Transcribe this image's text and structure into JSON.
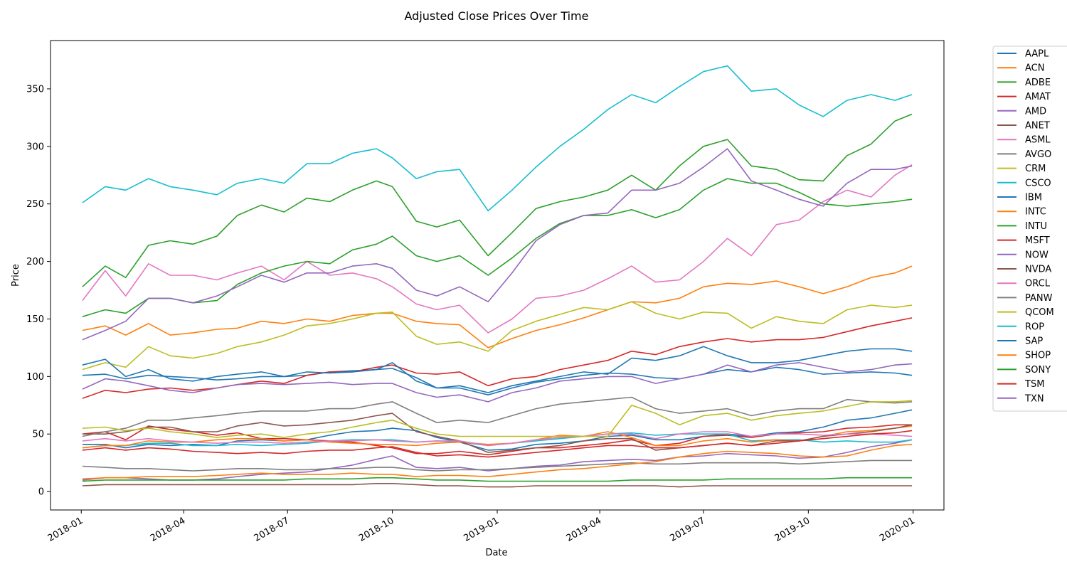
{
  "chart_data": {
    "type": "line",
    "title": "Adjusted Close Prices Over Time",
    "xlabel": "Date",
    "ylabel": "Price",
    "xlim": [
      "2017-12-05",
      "2020-01-28"
    ],
    "ylim": [
      -16,
      392
    ],
    "grid": false,
    "legend_placement": "outside right, top",
    "x_ticks": [
      "2018-01",
      "2018-04",
      "2018-07",
      "2018-10",
      "2019-01",
      "2019-04",
      "2019-07",
      "2019-10",
      "2020-01"
    ],
    "y_ticks": [
      0,
      50,
      100,
      150,
      200,
      250,
      300,
      350
    ],
    "x": [
      "2018-01-02",
      "2018-01-22",
      "2018-02-09",
      "2018-03-01",
      "2018-03-20",
      "2018-04-09",
      "2018-04-30",
      "2018-05-18",
      "2018-06-08",
      "2018-06-28",
      "2018-07-18",
      "2018-08-07",
      "2018-08-27",
      "2018-09-17",
      "2018-10-01",
      "2018-10-22",
      "2018-11-09",
      "2018-11-29",
      "2018-12-24",
      "2019-01-14",
      "2019-02-04",
      "2019-02-25",
      "2019-03-18",
      "2019-04-08",
      "2019-04-29",
      "2019-05-20",
      "2019-06-10",
      "2019-07-01",
      "2019-07-22",
      "2019-08-12",
      "2019-09-03",
      "2019-09-23",
      "2019-10-14",
      "2019-11-04",
      "2019-11-25",
      "2019-12-16",
      "2019-12-31"
    ],
    "series": [
      {
        "name": "AAPL",
        "color": "#1f77b4",
        "values": [
          41,
          41,
          38,
          41,
          40,
          41,
          40,
          44,
          45,
          44,
          45,
          49,
          52,
          53,
          55,
          53,
          47,
          43,
          36,
          37,
          41,
          42,
          44,
          48,
          49,
          45,
          45,
          48,
          50,
          48,
          51,
          52,
          56,
          62,
          64,
          68,
          71
        ]
      },
      {
        "name": "ACN",
        "color": "#ff7f0e",
        "values": [
          140,
          144,
          136,
          146,
          136,
          138,
          141,
          142,
          148,
          146,
          150,
          148,
          153,
          155,
          155,
          148,
          146,
          145,
          125,
          133,
          140,
          145,
          151,
          158,
          165,
          164,
          168,
          178,
          181,
          180,
          183,
          178,
          172,
          178,
          186,
          190,
          196
        ]
      },
      {
        "name": "ADBE",
        "color": "#2ca02c",
        "values": [
          178,
          196,
          186,
          214,
          218,
          215,
          222,
          240,
          249,
          243,
          255,
          252,
          262,
          270,
          265,
          235,
          230,
          236,
          205,
          225,
          246,
          252,
          256,
          262,
          275,
          262,
          283,
          300,
          306,
          283,
          280,
          271,
          270,
          292,
          302,
          322,
          328
        ]
      },
      {
        "name": "AMAT",
        "color": "#d62728",
        "values": [
          50,
          52,
          45,
          57,
          54,
          52,
          49,
          51,
          46,
          46,
          45,
          44,
          43,
          40,
          38,
          33,
          33,
          35,
          32,
          35,
          38,
          38,
          40,
          42,
          45,
          40,
          42,
          48,
          49,
          47,
          50,
          51,
          52,
          55,
          56,
          58,
          58
        ]
      },
      {
        "name": "AMD",
        "color": "#9467bd",
        "values": [
          10,
          12,
          12,
          11,
          10,
          10,
          11,
          13,
          15,
          16,
          17,
          20,
          23,
          28,
          31,
          21,
          20,
          21,
          18,
          20,
          22,
          23,
          26,
          27,
          28,
          27,
          30,
          31,
          33,
          32,
          31,
          29,
          30,
          34,
          39,
          42,
          45
        ]
      },
      {
        "name": "ANET",
        "color": "#8c564b",
        "values": [
          5,
          6,
          6,
          6,
          6,
          6,
          6,
          6,
          6,
          6,
          6,
          6,
          6,
          7,
          7,
          6,
          5,
          5,
          4,
          4,
          5,
          5,
          5,
          5,
          5,
          5,
          4,
          5,
          5,
          5,
          5,
          5,
          5,
          5,
          5,
          5,
          5
        ]
      },
      {
        "name": "ASML",
        "color": "#e377c2",
        "values": [
          166,
          192,
          170,
          198,
          188,
          188,
          184,
          190,
          196,
          184,
          200,
          188,
          190,
          185,
          178,
          163,
          158,
          162,
          138,
          150,
          168,
          170,
          175,
          185,
          196,
          182,
          184,
          200,
          220,
          205,
          232,
          236,
          252,
          262,
          256,
          275,
          284
        ]
      },
      {
        "name": "AVGO",
        "color": "#7f7f7f",
        "values": [
          22,
          21,
          20,
          20,
          19,
          18,
          19,
          20,
          20,
          19,
          19,
          20,
          20,
          21,
          21,
          19,
          18,
          19,
          19,
          20,
          21,
          22,
          23,
          24,
          25,
          24,
          24,
          25,
          25,
          25,
          25,
          24,
          25,
          26,
          27,
          27,
          27
        ]
      },
      {
        "name": "CRM",
        "color": "#bcbd22",
        "values": [
          106,
          112,
          108,
          126,
          118,
          116,
          120,
          126,
          130,
          136,
          144,
          146,
          150,
          155,
          156,
          135,
          128,
          130,
          122,
          140,
          148,
          154,
          160,
          158,
          165,
          155,
          150,
          156,
          155,
          142,
          152,
          148,
          146,
          158,
          162,
          160,
          162
        ]
      },
      {
        "name": "CSCO",
        "color": "#17becf",
        "values": [
          38,
          40,
          40,
          42,
          42,
          40,
          40,
          41,
          40,
          41,
          42,
          44,
          45,
          45,
          45,
          43,
          44,
          43,
          40,
          42,
          44,
          46,
          48,
          50,
          51,
          49,
          50,
          50,
          50,
          44,
          45,
          45,
          43,
          44,
          43,
          43,
          45
        ]
      },
      {
        "name": "IBM",
        "color": "#1f77b4",
        "values": [
          101,
          102,
          98,
          101,
          100,
          99,
          97,
          98,
          100,
          100,
          101,
          104,
          105,
          106,
          107,
          99,
          90,
          90,
          84,
          90,
          95,
          98,
          101,
          103,
          102,
          99,
          98,
          102,
          106,
          104,
          108,
          106,
          102,
          103,
          104,
          103,
          101
        ]
      },
      {
        "name": "INTC",
        "color": "#ff7f0e",
        "values": [
          38,
          40,
          40,
          44,
          43,
          43,
          45,
          46,
          46,
          44,
          45,
          43,
          42,
          41,
          41,
          40,
          42,
          43,
          41,
          42,
          45,
          49,
          48,
          52,
          47,
          40,
          40,
          44,
          46,
          43,
          45,
          44,
          48,
          52,
          53,
          55,
          57
        ]
      },
      {
        "name": "INTU",
        "color": "#2ca02c",
        "values": [
          152,
          158,
          155,
          168,
          168,
          164,
          166,
          180,
          190,
          196,
          200,
          198,
          210,
          215,
          222,
          205,
          200,
          205,
          188,
          203,
          220,
          233,
          240,
          240,
          245,
          238,
          245,
          262,
          272,
          268,
          268,
          260,
          250,
          248,
          250,
          252,
          254
        ]
      },
      {
        "name": "MSFT",
        "color": "#d62728",
        "values": [
          81,
          88,
          86,
          89,
          90,
          88,
          90,
          93,
          96,
          94,
          101,
          104,
          104,
          108,
          110,
          103,
          102,
          104,
          92,
          98,
          100,
          106,
          110,
          114,
          122,
          119,
          126,
          130,
          133,
          130,
          132,
          132,
          134,
          139,
          144,
          148,
          151
        ]
      },
      {
        "name": "NOW",
        "color": "#9467bd",
        "values": [
          132,
          140,
          148,
          168,
          168,
          164,
          170,
          178,
          188,
          182,
          190,
          190,
          196,
          198,
          194,
          175,
          170,
          178,
          165,
          190,
          218,
          232,
          240,
          242,
          262,
          262,
          268,
          282,
          298,
          270,
          262,
          254,
          248,
          268,
          280,
          280,
          283
        ]
      },
      {
        "name": "NVDA",
        "color": "#8c564b",
        "values": [
          50,
          50,
          52,
          56,
          56,
          52,
          52,
          57,
          60,
          57,
          58,
          60,
          62,
          66,
          68,
          52,
          48,
          44,
          34,
          36,
          38,
          40,
          44,
          46,
          46,
          36,
          38,
          40,
          42,
          40,
          44,
          44,
          48,
          50,
          52,
          55,
          58
        ]
      },
      {
        "name": "ORCL",
        "color": "#e377c2",
        "values": [
          44,
          46,
          44,
          46,
          44,
          43,
          42,
          43,
          43,
          42,
          43,
          44,
          44,
          45,
          44,
          43,
          44,
          44,
          40,
          42,
          45,
          47,
          48,
          50,
          50,
          46,
          50,
          52,
          52,
          48,
          50,
          50,
          49,
          50,
          50,
          49,
          48
        ]
      },
      {
        "name": "PANW",
        "color": "#7f7f7f",
        "values": [
          48,
          52,
          55,
          62,
          62,
          64,
          66,
          68,
          70,
          70,
          70,
          72,
          72,
          76,
          78,
          68,
          60,
          62,
          60,
          66,
          72,
          76,
          78,
          80,
          82,
          72,
          68,
          70,
          72,
          66,
          70,
          72,
          72,
          80,
          78,
          77,
          78
        ]
      },
      {
        "name": "QCOM",
        "color": "#bcbd22",
        "values": [
          55,
          56,
          53,
          55,
          52,
          50,
          47,
          49,
          50,
          47,
          50,
          52,
          56,
          60,
          62,
          55,
          50,
          48,
          48,
          48,
          48,
          48,
          48,
          48,
          75,
          68,
          58,
          66,
          68,
          62,
          66,
          68,
          70,
          74,
          78,
          78,
          79
        ]
      },
      {
        "name": "ROP",
        "color": "#17becf",
        "values": [
          251,
          265,
          262,
          272,
          265,
          262,
          258,
          268,
          272,
          268,
          285,
          285,
          294,
          298,
          290,
          272,
          278,
          280,
          244,
          262,
          282,
          300,
          315,
          332,
          345,
          338,
          352,
          365,
          370,
          348,
          350,
          336,
          326,
          340,
          345,
          340,
          345
        ]
      },
      {
        "name": "SAP",
        "color": "#1f77b4",
        "values": [
          110,
          115,
          100,
          106,
          98,
          96,
          100,
          102,
          104,
          100,
          104,
          103,
          104,
          106,
          112,
          96,
          90,
          92,
          86,
          92,
          96,
          100,
          104,
          102,
          116,
          114,
          118,
          126,
          118,
          112,
          112,
          114,
          118,
          122,
          124,
          124,
          122
        ]
      },
      {
        "name": "SHOP",
        "color": "#ff7f0e",
        "values": [
          11,
          12,
          12,
          13,
          13,
          13,
          14,
          15,
          16,
          15,
          15,
          15,
          16,
          15,
          15,
          13,
          14,
          14,
          13,
          15,
          17,
          19,
          20,
          22,
          24,
          26,
          30,
          33,
          35,
          34,
          33,
          31,
          30,
          31,
          36,
          40,
          41
        ]
      },
      {
        "name": "SONY",
        "color": "#2ca02c",
        "values": [
          9,
          10,
          10,
          10,
          10,
          10,
          10,
          10,
          10,
          10,
          11,
          11,
          11,
          12,
          12,
          11,
          10,
          10,
          9,
          9,
          9,
          9,
          9,
          9,
          10,
          10,
          10,
          10,
          11,
          11,
          11,
          11,
          11,
          12,
          12,
          12,
          12
        ]
      },
      {
        "name": "TSM",
        "color": "#d62728",
        "values": [
          36,
          38,
          36,
          38,
          37,
          35,
          34,
          33,
          34,
          33,
          35,
          36,
          36,
          38,
          39,
          34,
          31,
          32,
          30,
          32,
          34,
          36,
          38,
          40,
          40,
          38,
          38,
          40,
          42,
          40,
          42,
          44,
          46,
          48,
          50,
          51,
          53
        ]
      },
      {
        "name": "TXN",
        "color": "#9467bd",
        "values": [
          89,
          98,
          96,
          92,
          88,
          86,
          90,
          93,
          94,
          93,
          94,
          95,
          93,
          94,
          94,
          86,
          82,
          84,
          78,
          86,
          90,
          96,
          98,
          100,
          100,
          94,
          98,
          102,
          110,
          104,
          110,
          112,
          108,
          104,
          106,
          110,
          111
        ]
      }
    ]
  }
}
